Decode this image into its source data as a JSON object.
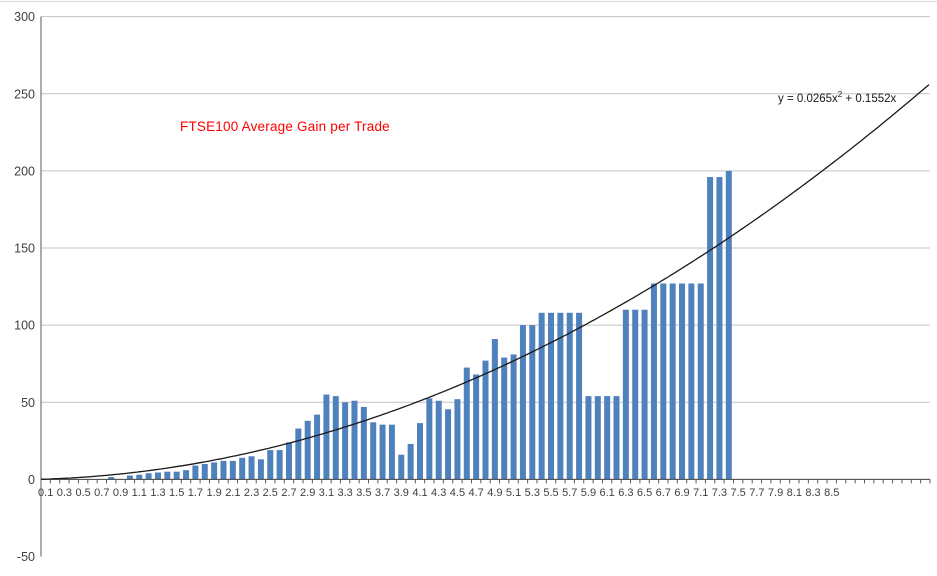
{
  "chart": {
    "title": "FTSE100 Average Gain per Trade",
    "title_color": "#FF0000",
    "equation": {
      "prefix": "y = 0.0265x",
      "sup": "2",
      "suffix": " + 0.1552x"
    }
  },
  "chart_data": {
    "type": "bar",
    "title": "FTSE100 Average Gain per Trade",
    "xlabel": "",
    "ylabel": "",
    "ylim": [
      -50,
      300
    ],
    "y_ticks": [
      300,
      250,
      200,
      150,
      100,
      50,
      0,
      -50
    ],
    "grid": true,
    "legend": "none",
    "x_start": 0.1,
    "x_step": 0.1,
    "total_slots": 95,
    "x_tick_labels": [
      "0.1",
      "0.3",
      "0.5",
      "0.7",
      "0.9",
      "1.1",
      "1.3",
      "1.5",
      "1.7",
      "1.9",
      "2.1",
      "2.3",
      "2.5",
      "2.7",
      "2.9",
      "3.1",
      "3.3",
      "3.5",
      "3.7",
      "3.9",
      "4.1",
      "4.3",
      "4.5",
      "4.7",
      "4.9",
      "5.1",
      "5.3",
      "5.5",
      "5.7",
      "5.9",
      "6.1",
      "6.3",
      "6.5",
      "6.7",
      "6.9",
      "7.1",
      "7.3",
      "7.5",
      "7.7",
      "7.9",
      "8.1",
      "8.3",
      "8.5"
    ],
    "values": [
      0,
      0,
      1,
      0,
      0,
      0,
      0,
      1.5,
      0,
      2.5,
      3,
      4,
      4.5,
      5,
      5,
      6,
      9,
      10,
      11,
      12,
      12,
      14,
      15,
      13,
      19,
      19,
      24,
      33,
      38,
      42,
      55,
      54,
      50,
      51,
      47,
      37,
      35.5,
      35.5,
      16,
      23,
      36.5,
      52.5,
      51,
      45.5,
      52,
      72.5,
      68,
      77,
      91,
      79,
      81,
      100,
      100,
      108,
      108,
      108,
      108,
      108,
      54,
      54,
      54,
      54,
      110,
      110,
      110,
      127,
      127,
      127,
      127,
      127,
      127,
      196,
      196,
      200
    ],
    "bar_color": "#4F81BD",
    "gridline_color": "#C3C3C3",
    "axis_color": "#595959",
    "label_color": "#3f3f3f",
    "trendline": {
      "type": "polynomial",
      "order": 2,
      "a": 0.0265,
      "b": 0.1552,
      "c": 0,
      "color": "#1a1a1a",
      "equation": "y = 0.0265x² + 0.1552x"
    }
  }
}
